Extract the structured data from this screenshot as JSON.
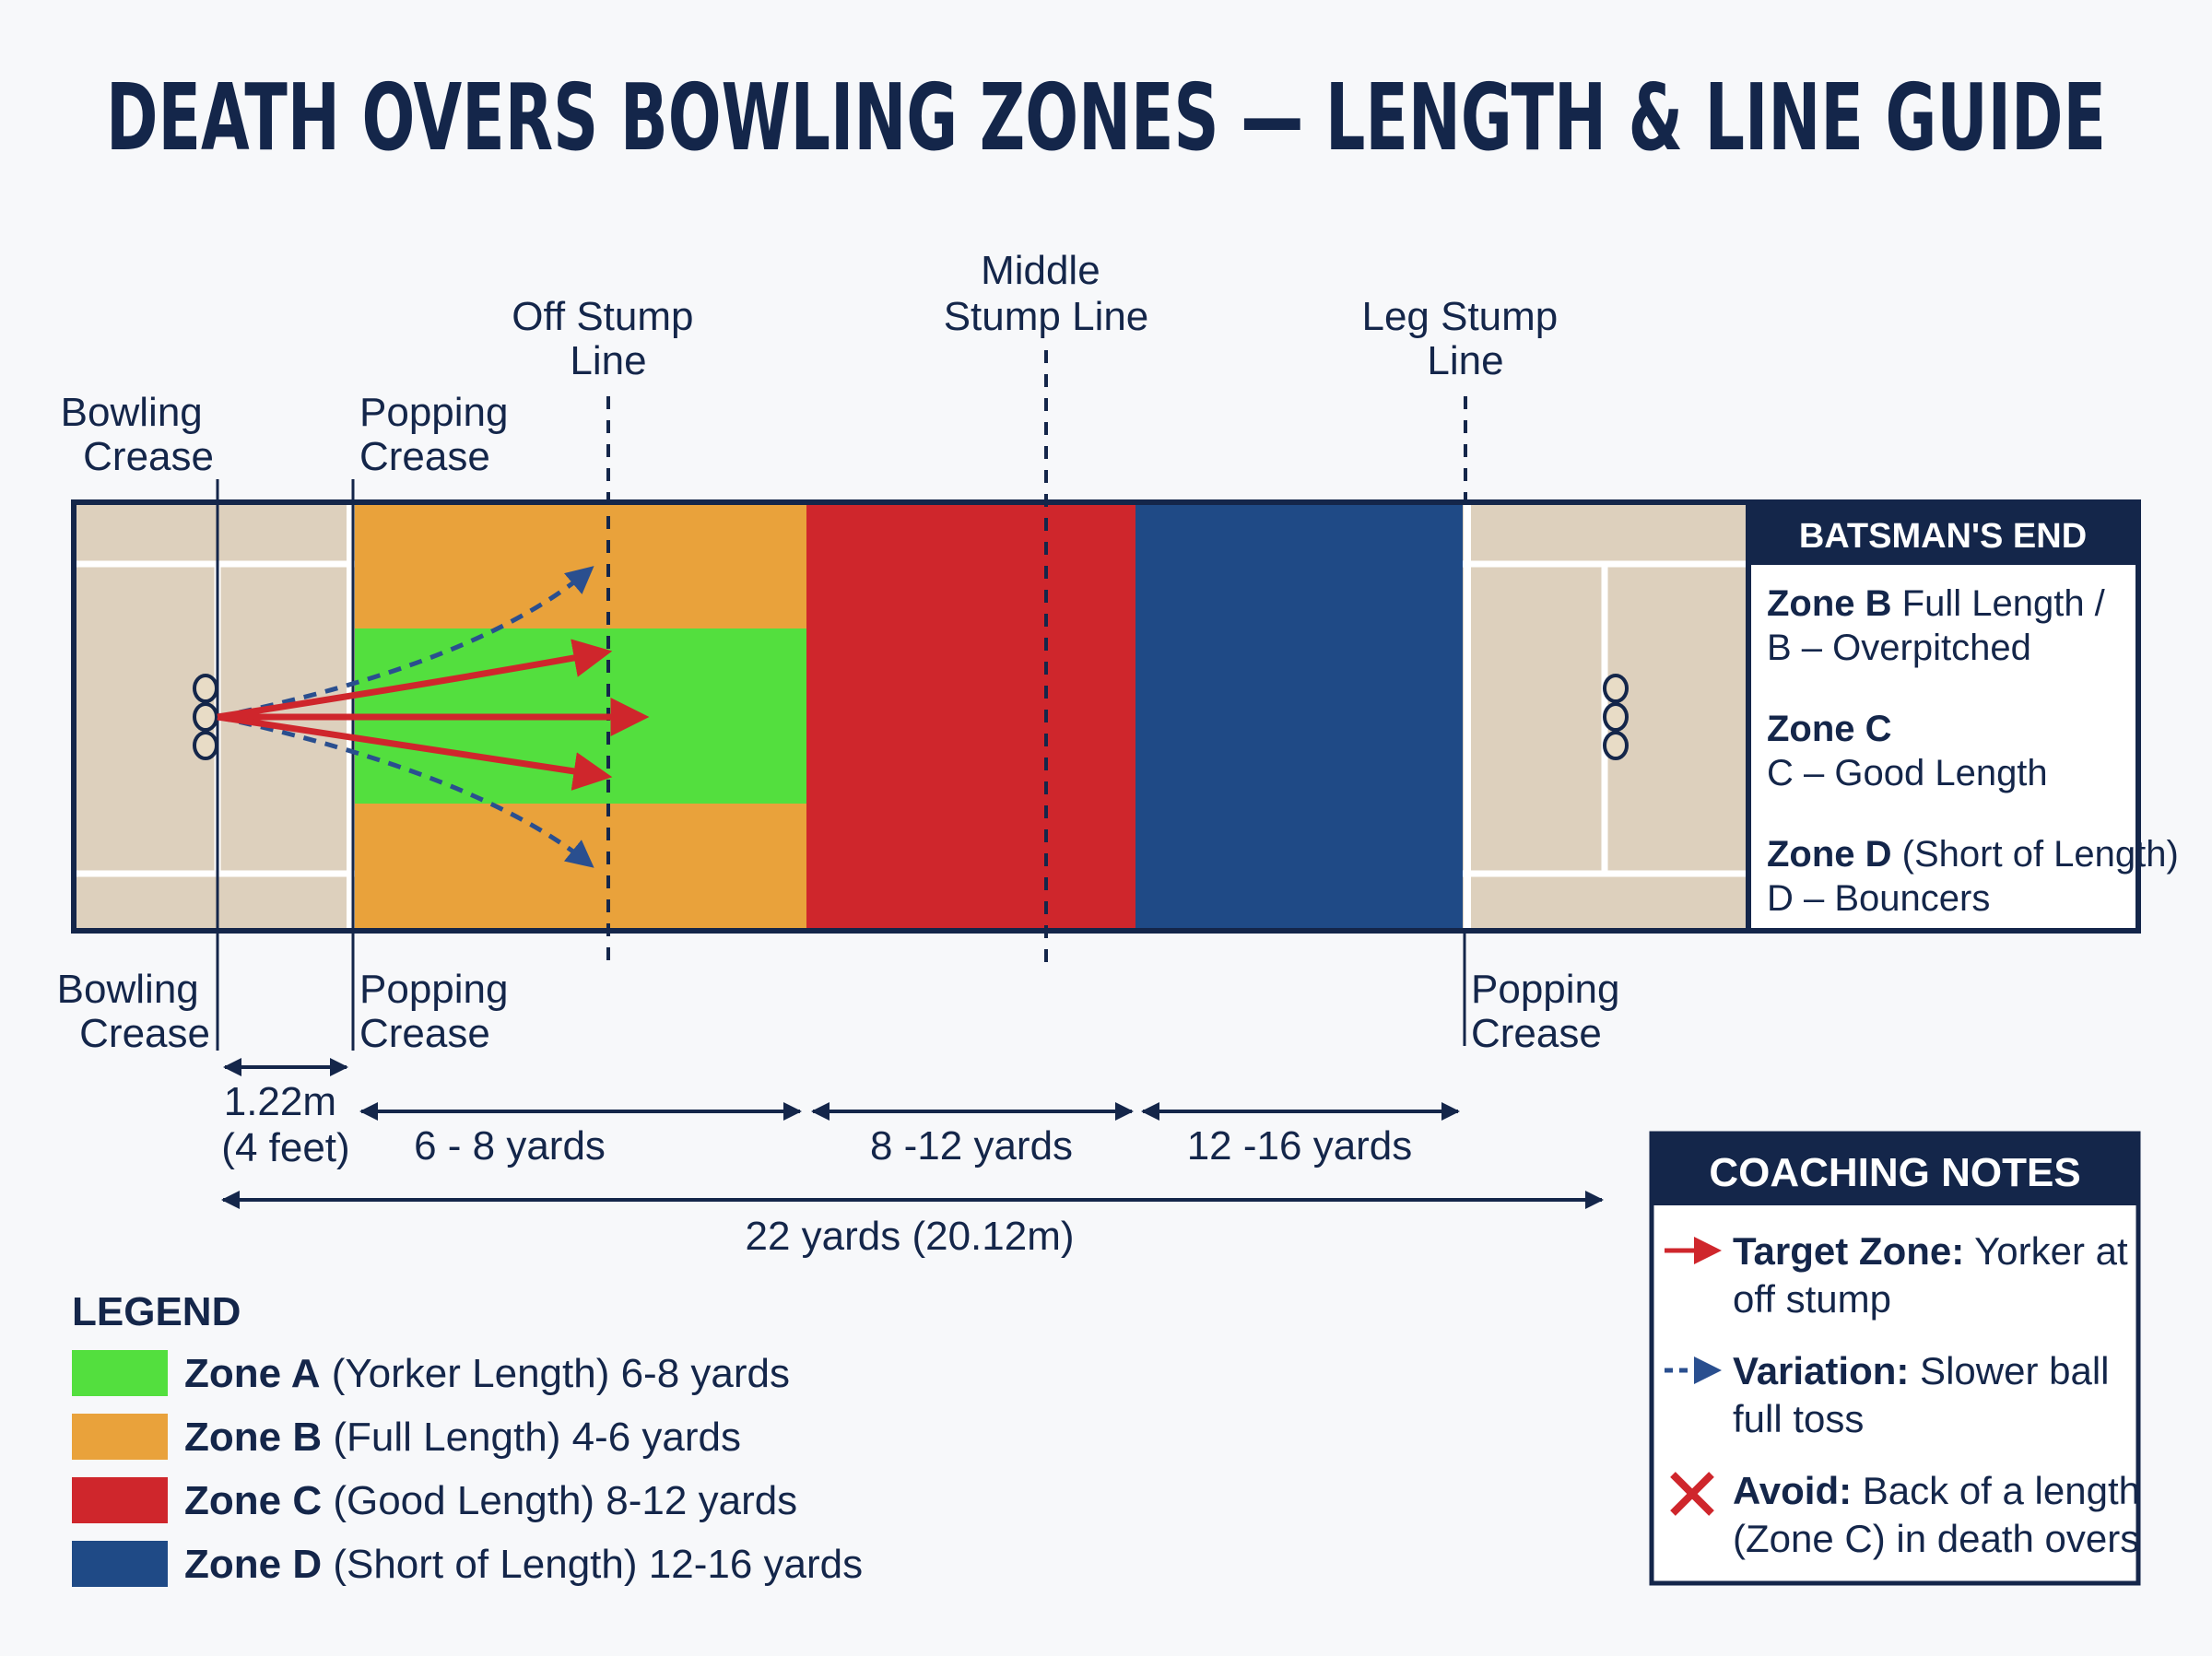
{
  "title": "DEATH OVERS BOWLING ZONES — LENGTH & LINE GUIDE",
  "lines": {
    "off_stump": [
      "Off Stump",
      "Line"
    ],
    "middle_stump": [
      "Middle",
      "Stump Line"
    ],
    "leg_stump": [
      "Leg Stump",
      "Line"
    ]
  },
  "creases": {
    "bowling_top": [
      "Bowling",
      "Crease"
    ],
    "popping_top": [
      "Popping",
      "Crease"
    ],
    "bowling_bottom": [
      "Bowling",
      "Crease"
    ],
    "popping_bottom": [
      "Popping",
      "Crease"
    ],
    "popping_far": [
      "Popping",
      "Crease"
    ]
  },
  "batsman_panel": {
    "header": "BATSMAN'S END",
    "entries": [
      {
        "bold": "Zone B",
        "rest": " Full Length /",
        "line2": "B – Overpitched"
      },
      {
        "bold": "Zone C",
        "rest": "",
        "line2": "C – Good Length"
      },
      {
        "bold": "Zone D",
        "rest": " (Short of Length)",
        "line2": "D – Bouncers"
      }
    ]
  },
  "measurements": {
    "crease_gap": [
      "1.22m",
      "(4 feet)"
    ],
    "seg1": "6 - 8 yards",
    "seg2": "8 -12 yards",
    "seg3": "12 -16 yards",
    "total": "22 yards (20.12m)"
  },
  "legend": {
    "heading": "LEGEND",
    "items": [
      {
        "bold": "Zone A",
        "rest": " (Yorker Length) 6-8 yards",
        "color": "#53df3e"
      },
      {
        "bold": "Zone B",
        "rest": " (Full Length) 4-6 yards",
        "color": "#e9a23b"
      },
      {
        "bold": "Zone C",
        "rest": " (Good Length) 8-12 yards",
        "color": "#cf262c"
      },
      {
        "bold": "Zone D",
        "rest": " (Short of Length) 12-16 yards",
        "color": "#1f4a86"
      }
    ]
  },
  "coaching": {
    "header": "COACHING NOTES",
    "notes": [
      {
        "icon": "solid-red-arrow-icon",
        "bold": "Target Zone:",
        "rest": " Yorker at",
        "line2": "off stump"
      },
      {
        "icon": "dashed-blue-arrow-icon",
        "bold": "Variation:",
        "rest": " Slower ball",
        "line2": "full toss"
      },
      {
        "icon": "red-x-icon",
        "bold": "Avoid:",
        "rest": " Back of a length",
        "line2": "(Zone C) in death overs"
      }
    ]
  },
  "colors": {
    "navy": "#14264a",
    "zone_a": "#53df3e",
    "zone_b": "#e9a23b",
    "zone_c": "#cf262c",
    "zone_d": "#1f4a86",
    "pitch": "#ddd0bd",
    "arrow_dashed": "#2a4f8f"
  }
}
